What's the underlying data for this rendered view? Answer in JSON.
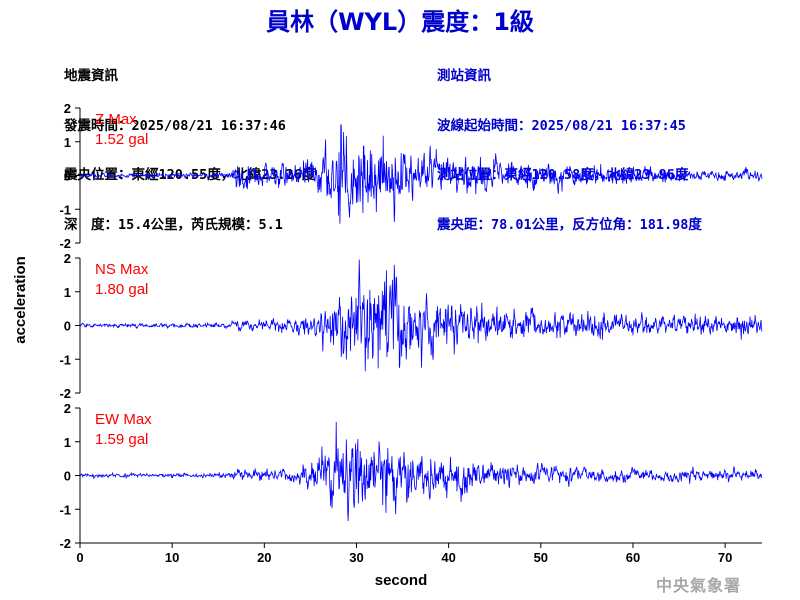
{
  "header": {
    "title": "員林（WYL）震度：1級",
    "left_lines": [
      "地震資訊",
      "發震時間：2025/08/21 16:37:46",
      "震央位置：東經120.55度，北緯23.26度",
      "深　度：15.4公里，芮氏規模：5.1"
    ],
    "right_lines": [
      "測站資訊",
      "波線起始時間：2025/08/21 16:37:45",
      "測站位置：東經120.58度，北緯23.96度",
      "震央距：78.01公里，反方位角：181.98度"
    ]
  },
  "footer": {
    "credit": "中央氣象署"
  },
  "colors": {
    "trace": "#0000ff",
    "max_label": "#ff0000",
    "title": "#0000cc"
  },
  "chart_data": {
    "type": "line",
    "xlabel": "second",
    "ylabel": "acceleration",
    "xlim": [
      0,
      74
    ],
    "xticks": [
      0,
      10,
      20,
      30,
      40,
      50,
      60,
      70
    ],
    "ylim": [
      -2,
      2
    ],
    "yticks": [
      -2,
      -1,
      0,
      1,
      2
    ],
    "grid": false,
    "series": [
      {
        "name": "Z",
        "max_label": "Z Max",
        "max_value": "1.52 gal",
        "envelope_times": [
          0,
          16,
          17,
          20,
          24,
          26,
          27,
          28,
          29,
          31,
          33,
          36,
          40,
          45,
          50,
          55,
          60,
          65,
          70,
          74
        ],
        "envelope_amplitude": [
          0.05,
          0.06,
          0.28,
          0.3,
          0.26,
          0.5,
          0.7,
          1.2,
          0.95,
          0.9,
          0.75,
          0.55,
          0.45,
          0.35,
          0.3,
          0.22,
          0.2,
          0.16,
          0.13,
          0.12
        ],
        "peak_time": 28.3,
        "peak_value": 1.52
      },
      {
        "name": "NS",
        "max_label": "NS Max",
        "max_value": "1.80 gal",
        "envelope_times": [
          0,
          16,
          17,
          21,
          25,
          27,
          29,
          31,
          33,
          34,
          36,
          40,
          45,
          50,
          55,
          60,
          65,
          70,
          74
        ],
        "envelope_amplitude": [
          0.04,
          0.05,
          0.12,
          0.15,
          0.25,
          0.45,
          0.9,
          1.0,
          1.1,
          1.3,
          0.85,
          0.55,
          0.4,
          0.32,
          0.28,
          0.25,
          0.24,
          0.24,
          0.26
        ],
        "peak_time": 34.1,
        "peak_value": 1.8
      },
      {
        "name": "EW",
        "max_label": "EW Max",
        "max_value": "1.59 gal",
        "envelope_times": [
          0,
          16,
          17,
          22,
          25,
          27,
          28,
          29,
          31,
          34,
          37,
          40,
          45,
          50,
          55,
          60,
          65,
          70,
          74
        ],
        "envelope_amplitude": [
          0.04,
          0.05,
          0.12,
          0.15,
          0.3,
          0.7,
          1.1,
          1.0,
          0.95,
          0.7,
          0.55,
          0.45,
          0.3,
          0.22,
          0.18,
          0.15,
          0.13,
          0.12,
          0.12
        ],
        "peak_time": 27.8,
        "peak_value": 1.59
      }
    ]
  }
}
